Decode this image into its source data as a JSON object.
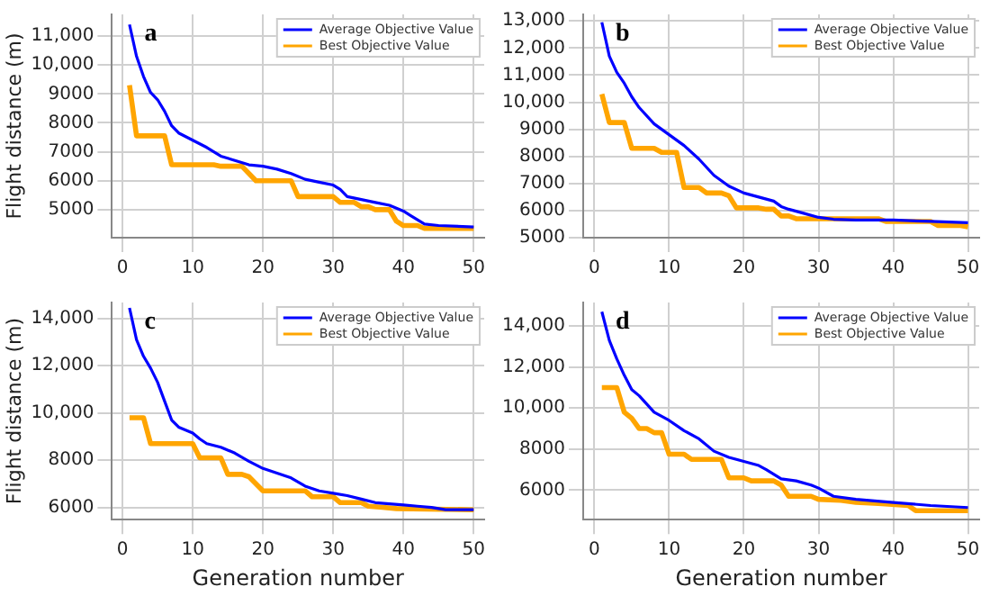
{
  "chart_data": [
    {
      "type": "line",
      "title": "a",
      "ylabel": "Flight distance (m)",
      "xlim": [
        -1.5,
        51.5
      ],
      "xticks": [
        0,
        10,
        20,
        30,
        40,
        50
      ],
      "ylim": [
        4030,
        11750
      ],
      "yticks": [
        5000,
        6000,
        7000,
        8000,
        9000,
        {
          "value": 10000,
          "label": "10,000"
        },
        {
          "value": 11000,
          "label": "11,000"
        }
      ],
      "grid": true,
      "legend": "top right",
      "series": [
        {
          "name": "Average Objective Value",
          "color": "#0000ff",
          "x": [
            1,
            2,
            3,
            4,
            5,
            6,
            7,
            8,
            10,
            12,
            14,
            16,
            18,
            20,
            22,
            24,
            26,
            28,
            30,
            31,
            32,
            34,
            36,
            38,
            40,
            41,
            43,
            45,
            50
          ],
          "values": [
            11400,
            10300,
            9600,
            9050,
            8800,
            8400,
            7900,
            7650,
            7400,
            7150,
            6850,
            6700,
            6550,
            6500,
            6400,
            6250,
            6050,
            5950,
            5850,
            5700,
            5450,
            5350,
            5250,
            5150,
            4950,
            4800,
            4500,
            4450,
            4400
          ]
        },
        {
          "name": "Best Objective Value",
          "color": "#ffa500",
          "x": [
            1,
            2,
            6,
            7,
            13,
            14,
            17,
            19,
            24,
            25,
            30,
            31,
            33,
            34,
            35,
            36,
            38,
            39,
            40,
            42,
            43,
            50
          ],
          "values": [
            9300,
            7550,
            7550,
            6550,
            6550,
            6500,
            6500,
            6000,
            6000,
            5450,
            5450,
            5250,
            5250,
            5100,
            5100,
            5000,
            5000,
            4600,
            4450,
            4450,
            4350,
            4350
          ]
        }
      ]
    },
    {
      "type": "line",
      "title": "b",
      "xlim": [
        -1.5,
        51.5
      ],
      "xticks": [
        0,
        10,
        20,
        30,
        40,
        50
      ],
      "ylim": [
        5000,
        13240
      ],
      "yticks": [
        5000,
        6000,
        7000,
        8000,
        9000,
        {
          "value": 10000,
          "label": "10,000"
        },
        {
          "value": 11000,
          "label": "11,000"
        },
        {
          "value": 12000,
          "label": "12,000"
        },
        {
          "value": 13000,
          "label": "13,000"
        }
      ],
      "grid": true,
      "legend": "top right",
      "series": [
        {
          "name": "Average Objective Value",
          "color": "#0000ff",
          "x": [
            1,
            2,
            3,
            4,
            5,
            6,
            8,
            10,
            12,
            14,
            16,
            18,
            20,
            22,
            24,
            25,
            26,
            28,
            30,
            32,
            35,
            40,
            45,
            50
          ],
          "values": [
            12950,
            11700,
            11100,
            10700,
            10200,
            9800,
            9200,
            8800,
            8400,
            7900,
            7300,
            6900,
            6650,
            6500,
            6350,
            6150,
            6050,
            5900,
            5750,
            5680,
            5650,
            5650,
            5600,
            5550
          ]
        },
        {
          "name": "Best Objective Value",
          "color": "#ffa500",
          "x": [
            1,
            2,
            4,
            5,
            8,
            9,
            11,
            12,
            14,
            15,
            17,
            18,
            19,
            22,
            23,
            24,
            25,
            26,
            27,
            38,
            39,
            45,
            46,
            49,
            50
          ],
          "values": [
            10300,
            9250,
            9250,
            8300,
            8300,
            8150,
            8150,
            6850,
            6850,
            6650,
            6650,
            6550,
            6100,
            6100,
            6050,
            6050,
            5800,
            5800,
            5700,
            5700,
            5600,
            5600,
            5450,
            5450,
            5400
          ]
        }
      ]
    },
    {
      "type": "line",
      "title": "c",
      "xlabel": "Generation number",
      "ylabel": "Flight distance (m)",
      "xlim": [
        -1.5,
        51.5
      ],
      "xticks": [
        0,
        10,
        20,
        30,
        40,
        50
      ],
      "ylim": [
        5480,
        14680
      ],
      "yticks": [
        6000,
        8000,
        {
          "value": 10000,
          "label": "10,000"
        },
        {
          "value": 12000,
          "label": "12,000"
        },
        {
          "value": 14000,
          "label": "14,000"
        }
      ],
      "grid": true,
      "legend": "top right",
      "series": [
        {
          "name": "Average Objective Value",
          "color": "#0000ff",
          "x": [
            1,
            2,
            3,
            4,
            5,
            6,
            7,
            8,
            10,
            11,
            12,
            14,
            16,
            18,
            20,
            22,
            24,
            26,
            28,
            30,
            32,
            34,
            36,
            38,
            40,
            42,
            44,
            46,
            50
          ],
          "values": [
            14450,
            13100,
            12400,
            11900,
            11300,
            10500,
            9700,
            9400,
            9150,
            8900,
            8700,
            8550,
            8300,
            7950,
            7650,
            7450,
            7250,
            6900,
            6700,
            6600,
            6500,
            6350,
            6200,
            6150,
            6100,
            6050,
            6000,
            5900,
            5900
          ]
        },
        {
          "name": "Best Objective Value",
          "color": "#ffa500",
          "x": [
            1,
            3,
            4,
            10,
            11,
            14,
            15,
            17,
            18,
            20,
            26,
            27,
            30,
            31,
            34,
            35,
            37,
            39,
            50
          ],
          "values": [
            9800,
            9800,
            8700,
            8700,
            8100,
            8100,
            7400,
            7400,
            7300,
            6700,
            6700,
            6450,
            6450,
            6200,
            6200,
            6050,
            6000,
            5950,
            5900
          ]
        }
      ]
    },
    {
      "type": "line",
      "title": "d",
      "xlabel": "Generation number",
      "xlim": [
        -1.5,
        51.5
      ],
      "xticks": [
        0,
        10,
        20,
        30,
        40,
        50
      ],
      "ylim": [
        4560,
        15150
      ],
      "yticks": [
        6000,
        8000,
        {
          "value": 10000,
          "label": "10,000"
        },
        {
          "value": 12000,
          "label": "12,000"
        },
        {
          "value": 14000,
          "label": "14,000"
        }
      ],
      "grid": true,
      "legend": "top right",
      "series": [
        {
          "name": "Average Objective Value",
          "color": "#0000ff",
          "x": [
            1,
            2,
            3,
            4,
            5,
            6,
            8,
            10,
            12,
            14,
            16,
            18,
            20,
            22,
            23,
            25,
            27,
            29,
            30,
            32,
            35,
            40,
            45,
            50
          ],
          "values": [
            14700,
            13300,
            12400,
            11600,
            10900,
            10600,
            9800,
            9400,
            8900,
            8500,
            7900,
            7600,
            7400,
            7200,
            7000,
            6550,
            6450,
            6250,
            6100,
            5700,
            5550,
            5400,
            5250,
            5150
          ]
        },
        {
          "name": "Best Objective Value",
          "color": "#ffa500",
          "x": [
            1,
            3,
            4,
            5,
            6,
            7,
            8,
            9,
            10,
            12,
            13,
            17,
            18,
            20,
            21,
            24,
            25,
            26,
            29,
            30,
            33,
            35,
            38,
            42,
            43,
            50
          ],
          "values": [
            11000,
            11000,
            9800,
            9500,
            9000,
            9000,
            8800,
            8800,
            7750,
            7750,
            7500,
            7500,
            6600,
            6600,
            6450,
            6450,
            6250,
            5700,
            5700,
            5550,
            5500,
            5400,
            5350,
            5250,
            5000,
            5000
          ]
        }
      ]
    }
  ]
}
